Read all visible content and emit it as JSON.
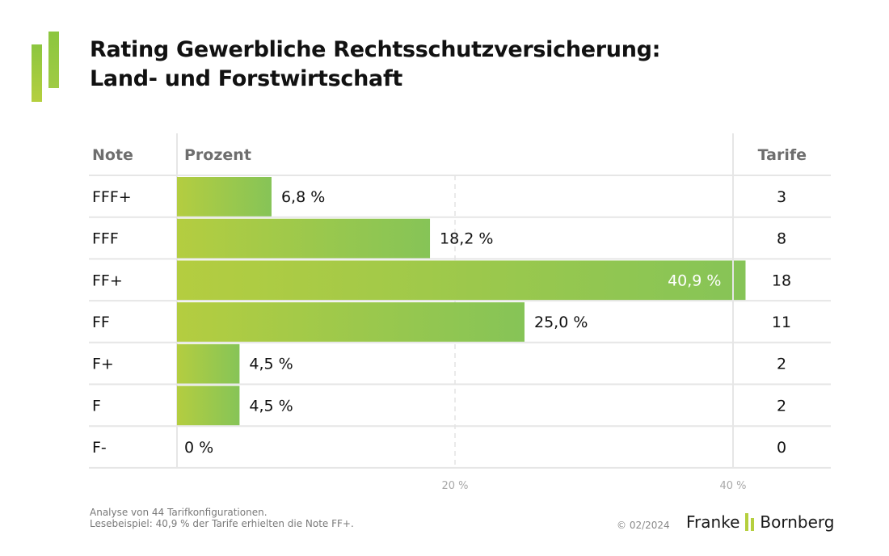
{
  "header": {
    "title_line1": "Rating Gewerbliche Rechtsschutzversicherung:",
    "title_line2": "Land- und Forstwirtschaft"
  },
  "colors": {
    "bar_gradient_start": "#b4cd40",
    "bar_gradient_end": "#86c457",
    "logo_green": "#8cc63f",
    "logo_lime": "#b5cf3e",
    "grid": "#e6e6e6",
    "header_text": "#6e6e6e"
  },
  "chart_data": {
    "type": "bar",
    "orientation": "horizontal",
    "title": "Rating Gewerbliche Rechtsschutzversicherung: Land- und Forstwirtschaft",
    "columns": {
      "note": "Note",
      "percent": "Prozent",
      "tariffs": "Tarife"
    },
    "categories": [
      "FFF+",
      "FFF",
      "FF+",
      "FF",
      "F+",
      "F",
      "F-"
    ],
    "values": [
      6.8,
      18.2,
      40.9,
      25.0,
      4.5,
      4.5,
      0
    ],
    "value_labels": [
      "6,8 %",
      "18,2 %",
      "40,9 %",
      "25,0 %",
      "4,5 %",
      "4,5 %",
      "0 %"
    ],
    "tariffs": [
      3,
      8,
      18,
      11,
      2,
      2,
      0
    ],
    "xlim": [
      0,
      40
    ],
    "xticks": [
      20,
      40
    ],
    "xtick_labels": [
      "20 %",
      "40 %"
    ],
    "grid": "vertical dashed at 20 %",
    "xlabel": "",
    "ylabel": ""
  },
  "footer": {
    "note_line1": "Analyse von 44 Tarifkonfigurationen.",
    "note_line2": "Lesebeispiel: 40,9 % der Tarife erhielten die Note FF+.",
    "copyright": "© 02/2024",
    "brand_left": "Franke",
    "brand_right": "Bornberg"
  }
}
